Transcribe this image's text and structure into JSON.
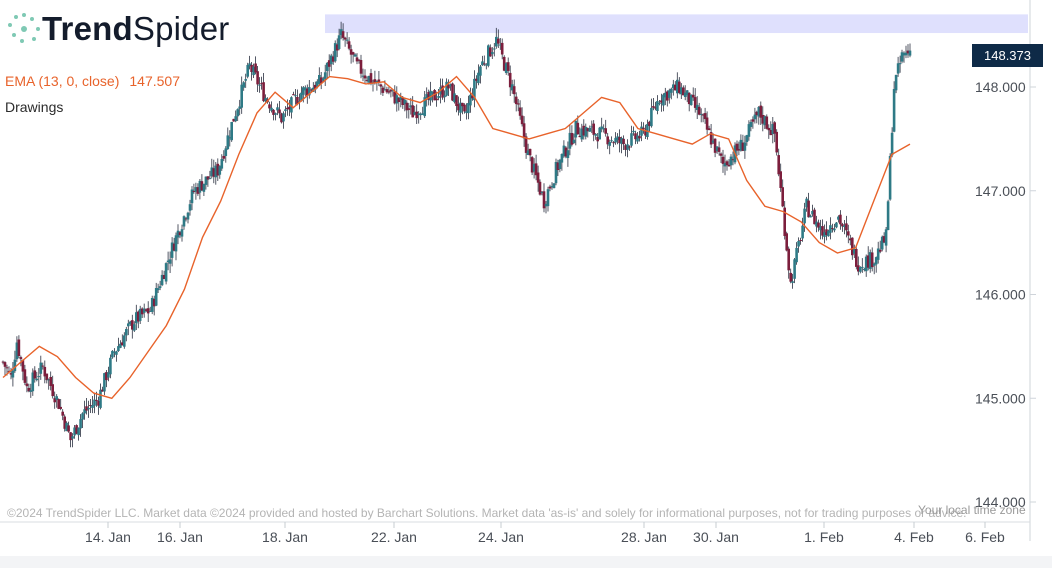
{
  "brand": {
    "name_bold": "Trend",
    "name_light": "Spider"
  },
  "indicator": {
    "label": "EMA (13, 0, close)",
    "value": "147.507",
    "color": "#e8632b"
  },
  "drawings_label": "Drawings",
  "last_price": "148.373",
  "footer_note": "©2024 TrendSpider LLC. Market data ©2024 provided and hosted by Barchart Solutions. Market data 'as-is' and solely for informational purposes, not for trading purposes or advice.",
  "timezone_note": "Your local time zone",
  "colors": {
    "up": "#2e7a86",
    "down": "#7c1e3c",
    "wick": "#2a3040",
    "ema": "#e8632b",
    "zone": "#dfe0fd",
    "badge": "#0e2a47"
  },
  "chart_data": {
    "type": "candlestick",
    "ylim": [
      144.0,
      148.8
    ],
    "y_ticks": [
      "144.000",
      "145.000",
      "146.000",
      "147.000",
      "148.000"
    ],
    "x_ticks": [
      "14. Jan",
      "16. Jan",
      "18. Jan",
      "22. Jan",
      "24. Jan",
      "28. Jan",
      "30. Jan",
      "1. Feb",
      "4. Feb",
      "6. Feb"
    ],
    "grid": false,
    "resistance_zone": [
      148.52,
      148.7
    ],
    "series": [
      {
        "name": "EMA (13, 0, close)",
        "kind": "line",
        "values": [
          145.2,
          145.35,
          145.5,
          145.4,
          145.2,
          145.05,
          145.0,
          145.2,
          145.45,
          145.7,
          146.05,
          146.55,
          146.9,
          147.35,
          147.75,
          147.95,
          147.8,
          147.95,
          148.1,
          148.08,
          148.03,
          148.05,
          147.9,
          147.85,
          147.95,
          148.1,
          147.9,
          147.6,
          147.55,
          147.5,
          147.55,
          147.6,
          147.75,
          147.9,
          147.85,
          147.6,
          147.55,
          147.5,
          147.45,
          147.55,
          147.5,
          147.1,
          146.85,
          146.8,
          146.7,
          146.5,
          146.4,
          146.45,
          146.9,
          147.35,
          147.45
        ]
      }
    ]
  }
}
